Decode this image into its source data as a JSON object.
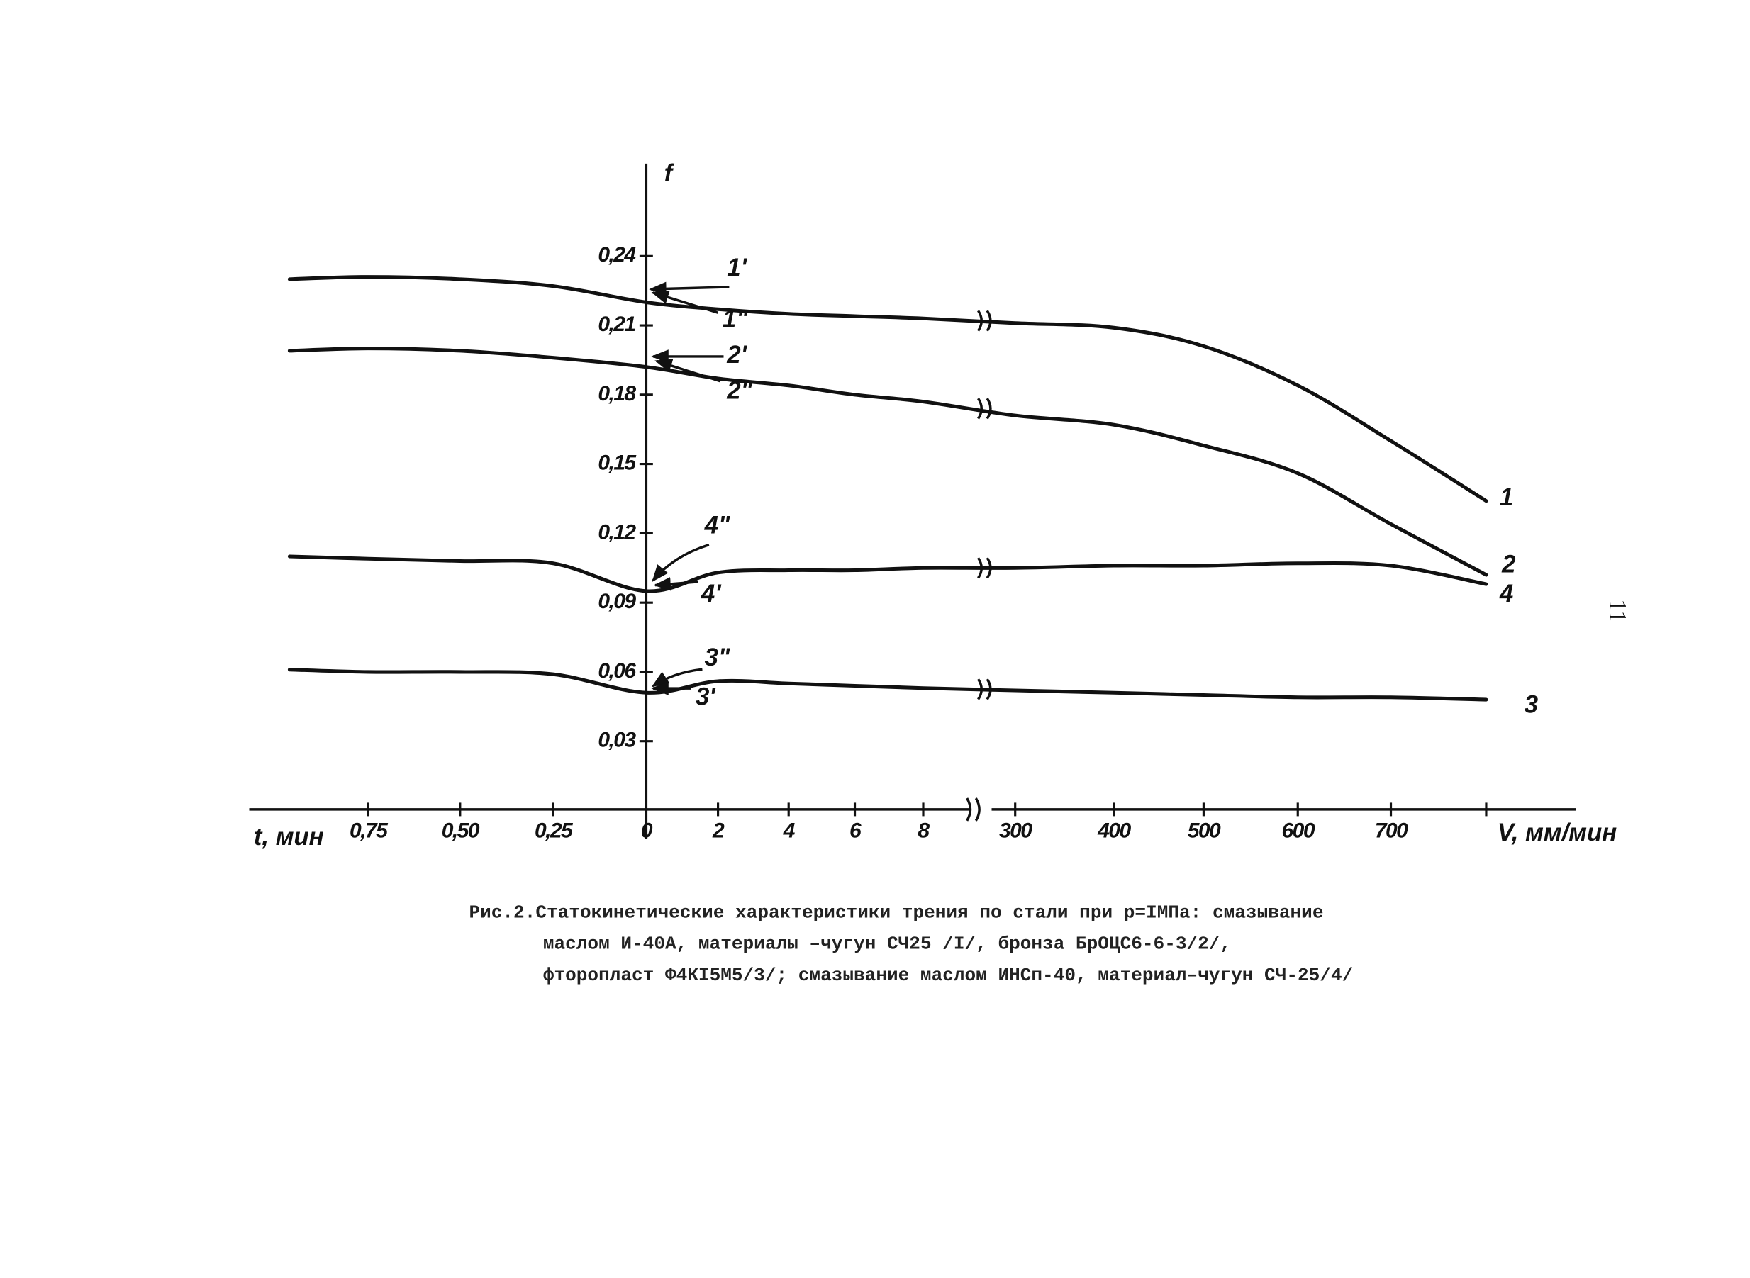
{
  "chart_data": {
    "type": "line",
    "y_label": "f",
    "x_label_left": "t, мин",
    "x_label_right": "V, мм/мин",
    "categories": [
      null,
      "0,75",
      "0,50",
      "0,25",
      "0",
      "2",
      "4",
      "6",
      "8",
      "300",
      "400",
      "500",
      "600",
      "700",
      null
    ],
    "ylim": [
      0,
      0.28
    ],
    "yticks": [
      {
        "value": 0.03,
        "label": "0,03"
      },
      {
        "value": 0.06,
        "label": "0,06"
      },
      {
        "value": 0.09,
        "label": "0,09"
      },
      {
        "value": 0.12,
        "label": "0,12"
      },
      {
        "value": 0.15,
        "label": "0,15"
      },
      {
        "value": 0.18,
        "label": "0,18"
      },
      {
        "value": 0.21,
        "label": "0,21"
      },
      {
        "value": 0.24,
        "label": "0,24"
      }
    ],
    "series": [
      {
        "name": "1",
        "color": "#111111",
        "values": [
          0.23,
          0.231,
          0.23,
          0.227,
          0.22,
          0.217,
          0.215,
          0.214,
          0.213,
          0.211,
          0.209,
          0.201,
          0.184,
          0.16,
          0.134
        ]
      },
      {
        "name": "2",
        "color": "#111111",
        "values": [
          0.199,
          0.2,
          0.199,
          0.196,
          0.192,
          0.187,
          0.184,
          0.18,
          0.177,
          0.171,
          0.167,
          0.158,
          0.146,
          0.124,
          0.102
        ]
      },
      {
        "name": "4",
        "color": "#111111",
        "values": [
          0.11,
          0.109,
          0.108,
          0.107,
          0.095,
          0.103,
          0.104,
          0.104,
          0.105,
          0.105,
          0.106,
          0.106,
          0.107,
          0.106,
          0.098
        ]
      },
      {
        "name": "3",
        "color": "#111111",
        "values": [
          0.061,
          0.06,
          0.06,
          0.059,
          0.051,
          0.056,
          0.055,
          0.054,
          0.053,
          0.052,
          0.051,
          0.05,
          0.049,
          0.049,
          0.048
        ]
      }
    ],
    "annotations": [
      "1'",
      "1\"",
      "2'",
      "2\"",
      "4\"",
      "4'",
      "3\"",
      "3'"
    ]
  },
  "caption": [
    "Рис.2.Статокинетические характеристики трения по стали при p=IМПа: смазывание",
    "маслом И-40А, материалы –чугун СЧ25 /I/, бронза БрОЦС6-6-3/2/,",
    "фторопласт Ф4КI5М5/3/; смазывание маслом ИНСп-40, материал–чугун СЧ-25/4/"
  ],
  "page_number": "11"
}
